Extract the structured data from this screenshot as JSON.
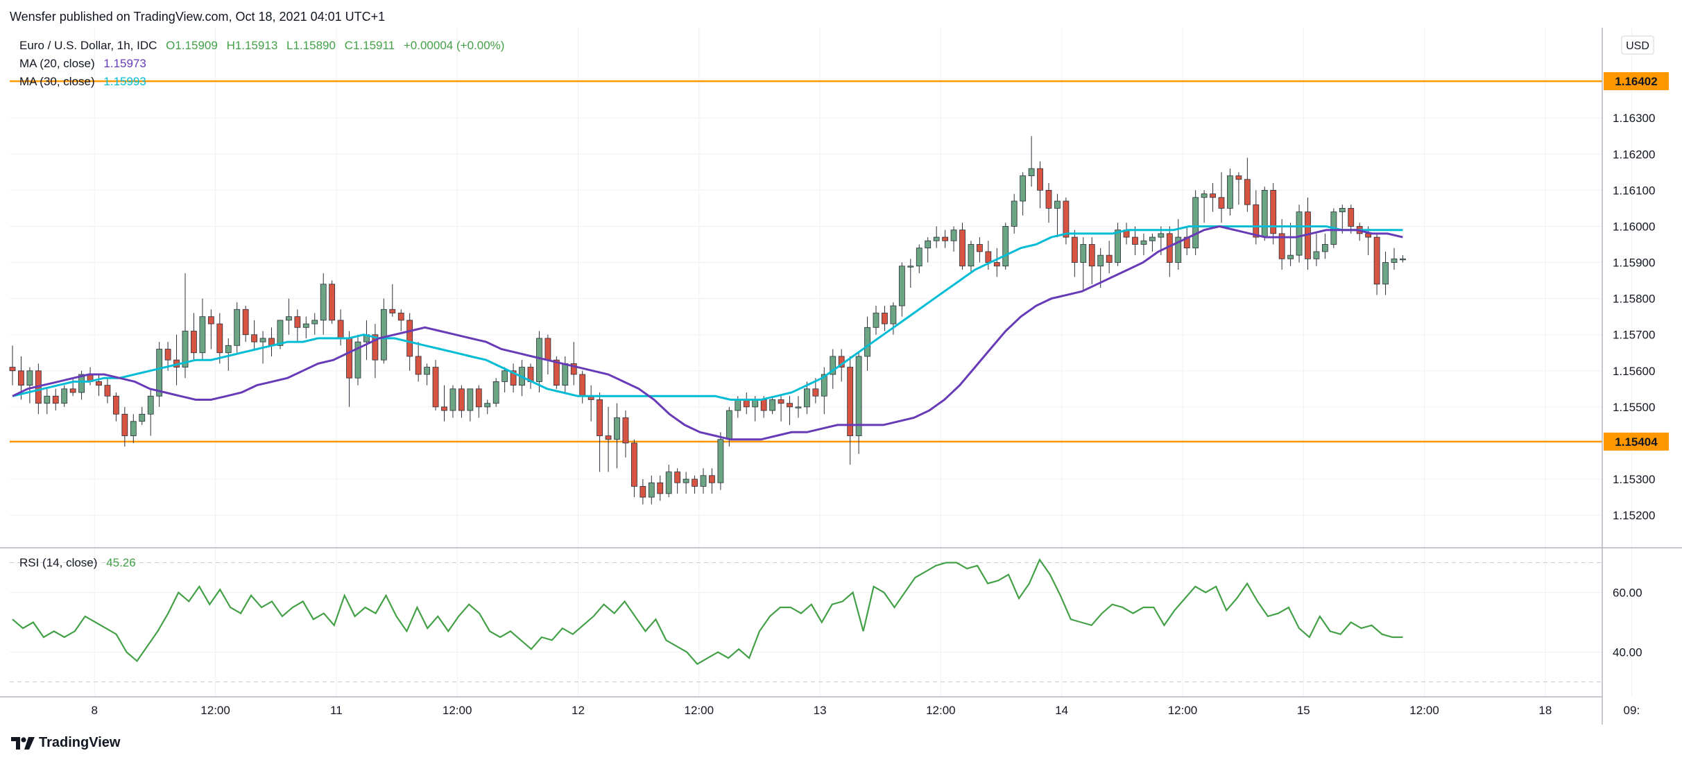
{
  "publisher_text": "Wensfer published on TradingView.com, Oct 18, 2021 04:01 UTC+1",
  "brand": "TradingView",
  "currency_label": "USD",
  "legend": {
    "symbol": "Euro / U.S. Dollar, 1h, IDC",
    "open": "O1.15909",
    "high": "H1.15913",
    "low": "L1.15890",
    "close": "C1.15911",
    "change": "+0.00004 (+0.00%)",
    "ma20_label": "MA (20, close)",
    "ma20_value": "1.15973",
    "ma30_label": "MA (30, close)",
    "ma30_value": "1.15993",
    "rsi_label": "RSI (14, close)",
    "rsi_value": "45.26"
  },
  "colors": {
    "up": "#6ba583",
    "down": "#d75442",
    "ma20": "#673ab7",
    "ma30": "#00bcd4",
    "rsi": "#43a047",
    "level": "#ff9800",
    "text": "#131722",
    "grid": "#eef0f3"
  },
  "chart_data": {
    "type": "candlestick",
    "price_ticks": [
      1.152,
      1.153,
      1.154,
      1.155,
      1.156,
      1.157,
      1.158,
      1.159,
      1.16,
      1.161,
      1.162,
      1.163
    ],
    "price_tick_labels": [
      "1.15200",
      "1.15300",
      "1.15400",
      "1.15500",
      "1.15600",
      "1.15700",
      "1.15800",
      "1.15900",
      "1.16000",
      "1.16100",
      "1.16200",
      "1.16300"
    ],
    "price_range": [
      1.1511,
      1.1655
    ],
    "x_labels": [
      "8",
      "12:00",
      "11",
      "12:00",
      "12",
      "12:00",
      "13",
      "12:00",
      "14",
      "12:00",
      "15",
      "12:00",
      "18",
      "09:"
    ],
    "x_label_positions_index": [
      9.5,
      23.5,
      37.5,
      51.5,
      65.5,
      79.5,
      93.5,
      107.5,
      121.5,
      135.5,
      149.5,
      163.5,
      177.5,
      187.5
    ],
    "levels": [
      {
        "label": "1.16402",
        "value": 1.16402
      },
      {
        "label": "1.15404",
        "value": 1.15404
      }
    ],
    "rsi_ticks": [
      40,
      60
    ],
    "rsi_tick_labels": [
      "40.00",
      "60.00"
    ],
    "rsi_range": [
      25,
      75
    ],
    "rsi_bands": [
      30,
      70
    ],
    "candles": [
      [
        1.1561,
        1.1567,
        1.1556,
        1.156
      ],
      [
        1.156,
        1.1564,
        1.1552,
        1.1556
      ],
      [
        1.1556,
        1.1561,
        1.1551,
        1.156
      ],
      [
        1.156,
        1.1562,
        1.1548,
        1.1551
      ],
      [
        1.1551,
        1.1555,
        1.1548,
        1.1553
      ],
      [
        1.1553,
        1.1555,
        1.1549,
        1.1551
      ],
      [
        1.1551,
        1.1556,
        1.155,
        1.1555
      ],
      [
        1.1555,
        1.1558,
        1.1553,
        1.1554
      ],
      [
        1.1554,
        1.156,
        1.1552,
        1.1559
      ],
      [
        1.1559,
        1.1561,
        1.1556,
        1.1557
      ],
      [
        1.1557,
        1.1559,
        1.1553,
        1.1556
      ],
      [
        1.1556,
        1.1558,
        1.1551,
        1.1553
      ],
      [
        1.1553,
        1.1554,
        1.1546,
        1.1548
      ],
      [
        1.1548,
        1.155,
        1.1539,
        1.1542
      ],
      [
        1.1542,
        1.1548,
        1.154,
        1.1546
      ],
      [
        1.1546,
        1.155,
        1.1545,
        1.1548
      ],
      [
        1.1548,
        1.1555,
        1.1542,
        1.1553
      ],
      [
        1.1553,
        1.1568,
        1.155,
        1.1566
      ],
      [
        1.1566,
        1.1568,
        1.156,
        1.1563
      ],
      [
        1.1563,
        1.157,
        1.1556,
        1.1561
      ],
      [
        1.1561,
        1.1587,
        1.1558,
        1.1571
      ],
      [
        1.1571,
        1.1576,
        1.1563,
        1.1565
      ],
      [
        1.1565,
        1.158,
        1.1563,
        1.1575
      ],
      [
        1.1575,
        1.1577,
        1.1566,
        1.1573
      ],
      [
        1.1573,
        1.1576,
        1.1562,
        1.1565
      ],
      [
        1.1565,
        1.1569,
        1.156,
        1.1567
      ],
      [
        1.1567,
        1.1579,
        1.1565,
        1.1577
      ],
      [
        1.1577,
        1.1578,
        1.1568,
        1.157
      ],
      [
        1.157,
        1.1574,
        1.1566,
        1.1568
      ],
      [
        1.1568,
        1.1571,
        1.1562,
        1.1569
      ],
      [
        1.1569,
        1.1572,
        1.1564,
        1.1567
      ],
      [
        1.1567,
        1.1574,
        1.1566,
        1.1574
      ],
      [
        1.1574,
        1.158,
        1.157,
        1.1575
      ],
      [
        1.1575,
        1.1577,
        1.1568,
        1.1572
      ],
      [
        1.1572,
        1.1575,
        1.1569,
        1.1573
      ],
      [
        1.1573,
        1.1576,
        1.157,
        1.1574
      ],
      [
        1.1574,
        1.1587,
        1.157,
        1.1584
      ],
      [
        1.1584,
        1.1585,
        1.1573,
        1.1574
      ],
      [
        1.1574,
        1.1577,
        1.1567,
        1.1569
      ],
      [
        1.1569,
        1.1571,
        1.155,
        1.1558
      ],
      [
        1.1558,
        1.157,
        1.1556,
        1.1568
      ],
      [
        1.1568,
        1.1574,
        1.1563,
        1.157
      ],
      [
        1.157,
        1.1573,
        1.1558,
        1.1563
      ],
      [
        1.1563,
        1.158,
        1.1562,
        1.1577
      ],
      [
        1.1577,
        1.1584,
        1.1575,
        1.1576
      ],
      [
        1.1576,
        1.1577,
        1.1571,
        1.1574
      ],
      [
        1.1574,
        1.1576,
        1.156,
        1.1564
      ],
      [
        1.1564,
        1.1568,
        1.1557,
        1.1559
      ],
      [
        1.1559,
        1.1562,
        1.1556,
        1.1561
      ],
      [
        1.1561,
        1.1563,
        1.1549,
        1.155
      ],
      [
        1.155,
        1.1556,
        1.1546,
        1.1549
      ],
      [
        1.1549,
        1.1556,
        1.1547,
        1.1555
      ],
      [
        1.1555,
        1.1556,
        1.1547,
        1.1549
      ],
      [
        1.1549,
        1.1555,
        1.1546,
        1.1555
      ],
      [
        1.1555,
        1.1556,
        1.1547,
        1.155
      ],
      [
        1.155,
        1.1552,
        1.1548,
        1.1551
      ],
      [
        1.1551,
        1.1558,
        1.155,
        1.1557
      ],
      [
        1.1557,
        1.1561,
        1.1554,
        1.156
      ],
      [
        1.156,
        1.1562,
        1.1554,
        1.1556
      ],
      [
        1.1556,
        1.1563,
        1.1553,
        1.1561
      ],
      [
        1.1561,
        1.1562,
        1.1555,
        1.1557
      ],
      [
        1.1557,
        1.1571,
        1.1554,
        1.1569
      ],
      [
        1.1569,
        1.157,
        1.1559,
        1.1563
      ],
      [
        1.1563,
        1.1564,
        1.1555,
        1.1556
      ],
      [
        1.1556,
        1.1564,
        1.1554,
        1.1562
      ],
      [
        1.1562,
        1.1568,
        1.1556,
        1.1559
      ],
      [
        1.1559,
        1.156,
        1.1551,
        1.1553
      ],
      [
        1.1553,
        1.1556,
        1.1546,
        1.1552
      ],
      [
        1.1552,
        1.1554,
        1.1532,
        1.1542
      ],
      [
        1.1542,
        1.155,
        1.1532,
        1.1541
      ],
      [
        1.1541,
        1.1551,
        1.1533,
        1.1547
      ],
      [
        1.1547,
        1.1549,
        1.1536,
        1.154
      ],
      [
        1.154,
        1.1541,
        1.1525,
        1.1528
      ],
      [
        1.1528,
        1.153,
        1.1523,
        1.1525
      ],
      [
        1.1525,
        1.1531,
        1.1523,
        1.1529
      ],
      [
        1.1529,
        1.1531,
        1.1524,
        1.1526
      ],
      [
        1.1526,
        1.1534,
        1.1525,
        1.1532
      ],
      [
        1.1532,
        1.1533,
        1.1526,
        1.1529
      ],
      [
        1.1529,
        1.1532,
        1.1526,
        1.153
      ],
      [
        1.153,
        1.1531,
        1.1526,
        1.1528
      ],
      [
        1.1528,
        1.1533,
        1.1526,
        1.1531
      ],
      [
        1.1531,
        1.1533,
        1.1526,
        1.1529
      ],
      [
        1.1529,
        1.1543,
        1.1527,
        1.1541
      ],
      [
        1.1541,
        1.155,
        1.1539,
        1.1549
      ],
      [
        1.1549,
        1.1553,
        1.1547,
        1.1552
      ],
      [
        1.1552,
        1.1554,
        1.1548,
        1.155
      ],
      [
        1.155,
        1.1553,
        1.1546,
        1.1552
      ],
      [
        1.1552,
        1.1553,
        1.1547,
        1.1549
      ],
      [
        1.1549,
        1.1553,
        1.1548,
        1.1552
      ],
      [
        1.1552,
        1.1553,
        1.1546,
        1.1551
      ],
      [
        1.1551,
        1.1553,
        1.1545,
        1.155
      ],
      [
        1.155,
        1.1553,
        1.1547,
        1.155
      ],
      [
        1.155,
        1.1557,
        1.1548,
        1.1555
      ],
      [
        1.1555,
        1.1558,
        1.1551,
        1.1553
      ],
      [
        1.1553,
        1.1561,
        1.1548,
        1.1559
      ],
      [
        1.1559,
        1.1566,
        1.1555,
        1.1564
      ],
      [
        1.1564,
        1.1566,
        1.1557,
        1.1561
      ],
      [
        1.1561,
        1.1564,
        1.1534,
        1.1542
      ],
      [
        1.1542,
        1.1565,
        1.1537,
        1.1564
      ],
      [
        1.1564,
        1.1575,
        1.156,
        1.1572
      ],
      [
        1.1572,
        1.1578,
        1.157,
        1.1576
      ],
      [
        1.1576,
        1.1578,
        1.1571,
        1.1573
      ],
      [
        1.1573,
        1.1579,
        1.157,
        1.1578
      ],
      [
        1.1578,
        1.159,
        1.1575,
        1.1589
      ],
      [
        1.1589,
        1.1591,
        1.1583,
        1.1589
      ],
      [
        1.1589,
        1.1595,
        1.1587,
        1.1594
      ],
      [
        1.1594,
        1.1597,
        1.159,
        1.1596
      ],
      [
        1.1596,
        1.16,
        1.1594,
        1.1597
      ],
      [
        1.1597,
        1.1599,
        1.1594,
        1.1596
      ],
      [
        1.1596,
        1.16,
        1.1593,
        1.1599
      ],
      [
        1.1599,
        1.1601,
        1.1588,
        1.1589
      ],
      [
        1.1589,
        1.1596,
        1.1587,
        1.1595
      ],
      [
        1.1595,
        1.1597,
        1.159,
        1.1593
      ],
      [
        1.1593,
        1.1596,
        1.1588,
        1.159
      ],
      [
        1.159,
        1.1594,
        1.1586,
        1.1589
      ],
      [
        1.1589,
        1.1601,
        1.1588,
        1.16
      ],
      [
        1.16,
        1.1609,
        1.1598,
        1.1607
      ],
      [
        1.1607,
        1.1615,
        1.1603,
        1.1614
      ],
      [
        1.1614,
        1.1625,
        1.1611,
        1.1616
      ],
      [
        1.1616,
        1.1618,
        1.1605,
        1.161
      ],
      [
        1.161,
        1.1612,
        1.1601,
        1.1605
      ],
      [
        1.1605,
        1.1609,
        1.1597,
        1.1607
      ],
      [
        1.1607,
        1.1608,
        1.1595,
        1.1597
      ],
      [
        1.1597,
        1.1599,
        1.1586,
        1.159
      ],
      [
        1.159,
        1.1597,
        1.1582,
        1.1595
      ],
      [
        1.1595,
        1.1597,
        1.1584,
        1.1589
      ],
      [
        1.1589,
        1.1594,
        1.1583,
        1.1592
      ],
      [
        1.1592,
        1.1596,
        1.1587,
        1.159
      ],
      [
        1.159,
        1.1601,
        1.1589,
        1.1599
      ],
      [
        1.1599,
        1.1601,
        1.1595,
        1.1597
      ],
      [
        1.1597,
        1.16,
        1.1592,
        1.1595
      ],
      [
        1.1595,
        1.1598,
        1.1592,
        1.1596
      ],
      [
        1.1596,
        1.1598,
        1.1593,
        1.1597
      ],
      [
        1.1597,
        1.16,
        1.1592,
        1.1598
      ],
      [
        1.1598,
        1.16,
        1.1586,
        1.159
      ],
      [
        1.159,
        1.1602,
        1.1588,
        1.1597
      ],
      [
        1.1597,
        1.16,
        1.1592,
        1.1594
      ],
      [
        1.1594,
        1.161,
        1.1592,
        1.1608
      ],
      [
        1.1608,
        1.161,
        1.1601,
        1.1609
      ],
      [
        1.1609,
        1.1612,
        1.1604,
        1.1608
      ],
      [
        1.1608,
        1.1615,
        1.1601,
        1.1605
      ],
      [
        1.1605,
        1.1616,
        1.1603,
        1.1614
      ],
      [
        1.1614,
        1.1615,
        1.1606,
        1.1613
      ],
      [
        1.1613,
        1.1619,
        1.1604,
        1.1606
      ],
      [
        1.1606,
        1.161,
        1.1595,
        1.1597
      ],
      [
        1.1597,
        1.1611,
        1.1596,
        1.161
      ],
      [
        1.161,
        1.1612,
        1.1595,
        1.1598
      ],
      [
        1.1598,
        1.1602,
        1.1588,
        1.1591
      ],
      [
        1.1591,
        1.1601,
        1.1589,
        1.1592
      ],
      [
        1.1592,
        1.1606,
        1.159,
        1.1604
      ],
      [
        1.1604,
        1.1608,
        1.1588,
        1.1591
      ],
      [
        1.1591,
        1.1598,
        1.1589,
        1.1593
      ],
      [
        1.1593,
        1.1598,
        1.1591,
        1.1595
      ],
      [
        1.1595,
        1.1605,
        1.1594,
        1.1604
      ],
      [
        1.1604,
        1.1606,
        1.1598,
        1.1605
      ],
      [
        1.1605,
        1.1606,
        1.1598,
        1.16
      ],
      [
        1.16,
        1.1601,
        1.1596,
        1.1598
      ],
      [
        1.1598,
        1.16,
        1.1592,
        1.1597
      ],
      [
        1.1597,
        1.1598,
        1.1581,
        1.1584
      ],
      [
        1.1584,
        1.1593,
        1.1581,
        1.159
      ],
      [
        1.159,
        1.1594,
        1.1588,
        1.1591
      ],
      [
        1.1591,
        1.1592,
        1.159,
        1.1591
      ]
    ],
    "ma20": [
      1.1553,
      1.1555,
      1.1556,
      1.1557,
      1.1558,
      1.1559,
      1.1559,
      1.1558,
      1.1557,
      1.1555,
      1.1554,
      1.1553,
      1.1552,
      1.1552,
      1.1553,
      1.1554,
      1.1556,
      1.1557,
      1.1558,
      1.156,
      1.1562,
      1.1563,
      1.1565,
      1.1567,
      1.1569,
      1.157,
      1.1571,
      1.1572,
      1.1571,
      1.157,
      1.1569,
      1.1568,
      1.1566,
      1.1565,
      1.1564,
      1.1563,
      1.1562,
      1.1561,
      1.156,
      1.1559,
      1.1557,
      1.1555,
      1.1552,
      1.1548,
      1.1545,
      1.1543,
      1.1542,
      1.1541,
      1.1541,
      1.1541,
      1.1542,
      1.1543,
      1.1543,
      1.1544,
      1.1545,
      1.1545,
      1.1545,
      1.1545,
      1.1546,
      1.1547,
      1.1549,
      1.1552,
      1.1556,
      1.1561,
      1.1566,
      1.1571,
      1.1575,
      1.1578,
      1.158,
      1.1581,
      1.1582,
      1.1584,
      1.1586,
      1.1588,
      1.159,
      1.1593,
      1.1595,
      1.1597,
      1.1599,
      1.16,
      1.1599,
      1.1598,
      1.1597,
      1.1597,
      1.1597,
      1.1598,
      1.1599,
      1.1599,
      1.1599,
      1.1598,
      1.1598,
      1.1597
    ],
    "ma30": [
      1.1553,
      1.1554,
      1.1555,
      1.1556,
      1.1557,
      1.1557,
      1.1558,
      1.1558,
      1.1559,
      1.156,
      1.1561,
      1.1562,
      1.1563,
      1.1563,
      1.1564,
      1.1565,
      1.1566,
      1.1567,
      1.1568,
      1.1568,
      1.1569,
      1.1569,
      1.1569,
      1.157,
      1.1569,
      1.1569,
      1.1568,
      1.1567,
      1.1566,
      1.1565,
      1.1564,
      1.1563,
      1.1561,
      1.1559,
      1.1557,
      1.1555,
      1.1554,
      1.1553,
      1.1553,
      1.1553,
      1.1553,
      1.1553,
      1.1553,
      1.1553,
      1.1553,
      1.1553,
      1.1553,
      1.1552,
      1.1552,
      1.1552,
      1.1553,
      1.1554,
      1.1556,
      1.1558,
      1.1561,
      1.1564,
      1.1567,
      1.157,
      1.1573,
      1.1576,
      1.1579,
      1.1582,
      1.1585,
      1.1588,
      1.159,
      1.1592,
      1.1594,
      1.1595,
      1.1597,
      1.1598,
      1.1598,
      1.1598,
      1.1598,
      1.1599,
      1.1599,
      1.1599,
      1.1599,
      1.16,
      1.16,
      1.16,
      1.16,
      1.16,
      1.16,
      1.16,
      1.16,
      1.16,
      1.16,
      1.1599,
      1.1599,
      1.1599,
      1.1599,
      1.1599
    ],
    "rsi": [
      51,
      48,
      50,
      45,
      47,
      45,
      47,
      52,
      50,
      48,
      46,
      40,
      37,
      42,
      47,
      53,
      60,
      57,
      62,
      56,
      61,
      55,
      53,
      59,
      55,
      57,
      52,
      55,
      57,
      51,
      53,
      49,
      59,
      52,
      55,
      53,
      59,
      52,
      47,
      55,
      48,
      52,
      47,
      52,
      56,
      53,
      47,
      45,
      47,
      44,
      41,
      45,
      44,
      48,
      46,
      49,
      52,
      56,
      53,
      57,
      52,
      47,
      51,
      44,
      42,
      40,
      36,
      38,
      40,
      38,
      41,
      38,
      47,
      52,
      55,
      55,
      53,
      56,
      50,
      56,
      57,
      60,
      47,
      62,
      60,
      55,
      60,
      65,
      67,
      69,
      70,
      70,
      68,
      69,
      63,
      64,
      66,
      58,
      63,
      71,
      66,
      59,
      51,
      50,
      49,
      53,
      56,
      55,
      53,
      55,
      55,
      49,
      54,
      58,
      62,
      60,
      62,
      54,
      58,
      63,
      57,
      52,
      53,
      55,
      48,
      45,
      52,
      47,
      46,
      50,
      48,
      49,
      46,
      45,
      45
    ]
  }
}
